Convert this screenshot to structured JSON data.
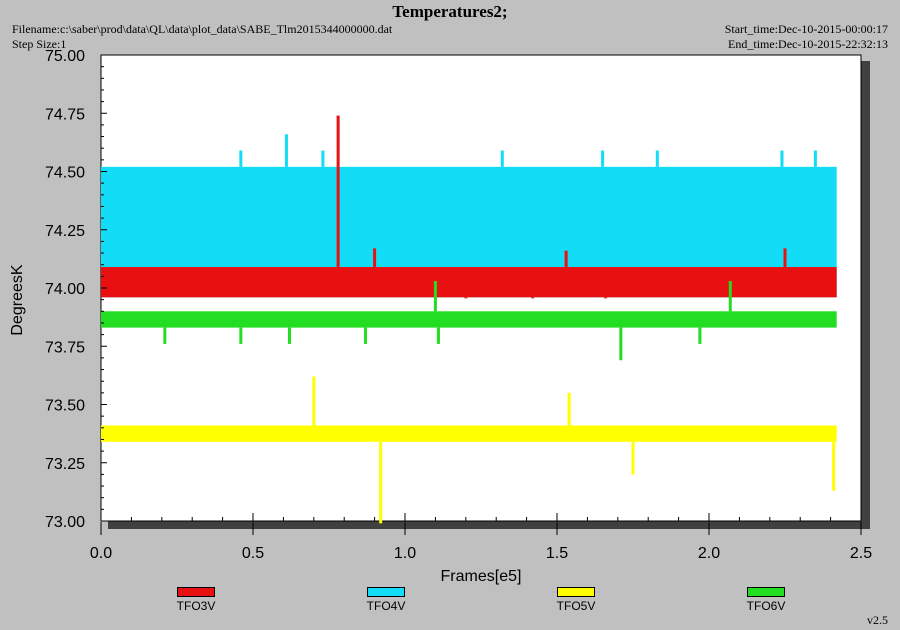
{
  "header": {
    "title": "Temperatures2;",
    "filename": "Filename:c:\\saber\\prod\\data\\QL\\data\\plot_data\\SABE_Tlm2015344000000.dat",
    "step_size": "Step Size:1",
    "start_time": "Start_time:Dec-10-2015-00:00:17",
    "end_time": "End_time:Dec-10-2015-22:32:13",
    "version": "v2.5"
  },
  "colors": {
    "TFO3V": "#e81010",
    "TFO4V": "#12dcf6",
    "TFO5V": "#ffff00",
    "TFO6V": "#22dd22",
    "plot_bg": "#ffffff",
    "page_bg": "#c0c0c0"
  },
  "chart_data": {
    "type": "line",
    "xlabel": "Frames[e5]",
    "ylabel": "DegreesK",
    "xlim": [
      0.0,
      2.5
    ],
    "ylim": [
      73.0,
      75.0
    ],
    "x_ticks": [
      "0.0",
      "0.5",
      "1.0",
      "1.5",
      "2.0",
      "2.5"
    ],
    "y_ticks": [
      "73.00",
      "73.25",
      "73.50",
      "73.75",
      "74.00",
      "74.25",
      "74.50",
      "74.75",
      "75.00"
    ],
    "grid": false,
    "legend_position": "bottom",
    "series": [
      {
        "name": "TFO3V",
        "x_range": [
          0.0,
          2.42
        ],
        "band": [
          73.96,
          74.09
        ],
        "spikes": [
          [
            0.78,
            74.74
          ],
          [
            0.9,
            74.17
          ],
          [
            1.2,
            74.09
          ],
          [
            1.42,
            74.09
          ],
          [
            1.53,
            74.16
          ],
          [
            1.66,
            74.09
          ],
          [
            2.25,
            74.17
          ]
        ]
      },
      {
        "name": "TFO4V",
        "x_range": [
          0.0,
          2.42
        ],
        "band": [
          73.96,
          74.52
        ],
        "spikes": [
          [
            0.46,
            74.59
          ],
          [
            0.61,
            74.66
          ],
          [
            0.73,
            74.59
          ],
          [
            1.32,
            74.59
          ],
          [
            1.65,
            74.59
          ],
          [
            1.83,
            74.59
          ],
          [
            2.24,
            74.59
          ],
          [
            2.35,
            74.59
          ]
        ]
      },
      {
        "name": "TFO5V",
        "x_range": [
          0.0,
          2.42
        ],
        "band": [
          73.34,
          73.41
        ],
        "spikes": [
          [
            0.7,
            73.62
          ],
          [
            1.54,
            73.55
          ],
          [
            0.92,
            72.99
          ],
          [
            1.75,
            73.2
          ],
          [
            2.41,
            73.13
          ]
        ]
      },
      {
        "name": "TFO6V",
        "x_range": [
          0.0,
          2.42
        ],
        "band": [
          73.83,
          73.9
        ],
        "spikes": [
          [
            0.21,
            73.76
          ],
          [
            0.46,
            73.76
          ],
          [
            0.62,
            73.76
          ],
          [
            0.87,
            73.76
          ],
          [
            1.11,
            73.76
          ],
          [
            1.71,
            73.69
          ],
          [
            1.97,
            73.76
          ],
          [
            1.1,
            74.03
          ],
          [
            2.07,
            74.03
          ]
        ]
      }
    ]
  }
}
